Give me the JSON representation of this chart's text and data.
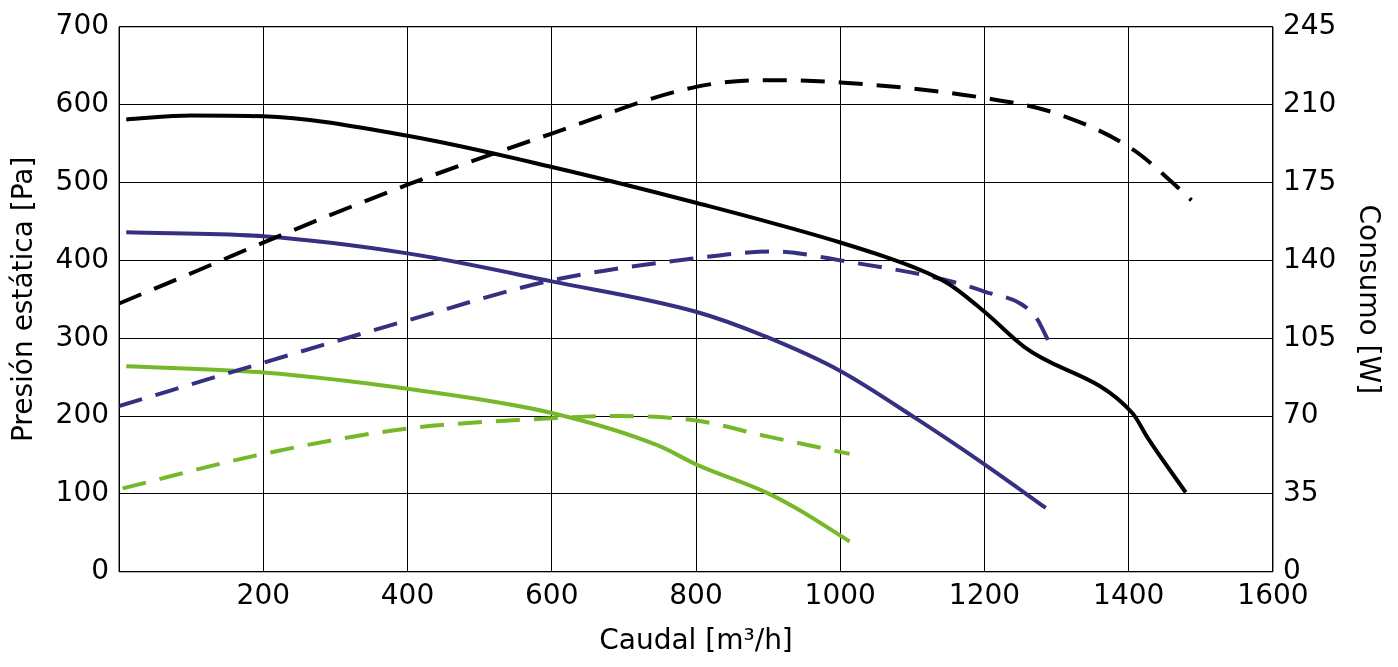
{
  "chart_data": {
    "type": "line",
    "xlabel": "Caudal [m³/h]",
    "ylabel": "Presión estática [Pa]",
    "y2label": "Consumo [W]",
    "xlim": [
      0,
      1600
    ],
    "xticks": [
      200,
      400,
      600,
      800,
      1000,
      1200,
      1400,
      1600
    ],
    "ylim": [
      0,
      700
    ],
    "yticks": [
      0,
      100,
      200,
      300,
      400,
      500,
      600,
      700
    ],
    "y2lim": [
      0,
      245
    ],
    "y2ticks": [
      0,
      35,
      70,
      105,
      140,
      175,
      210,
      245
    ],
    "grid": true,
    "legend": false,
    "marker": "none",
    "series": [
      {
        "color": "#000000",
        "line_style": "solid",
        "x": [
          10,
          100,
          200,
          400,
          600,
          800,
          1000,
          1105,
          1150,
          1200,
          1255,
          1405,
          1427,
          1479
        ],
        "values": [
          581,
          586,
          585,
          560,
          520,
          474,
          423,
          390,
          370,
          334,
          289,
          204,
          171,
          102
        ]
      },
      {
        "color": "#000000",
        "line_style": "dashed",
        "axis": "y2",
        "x": [
          0,
          106,
          200,
          400,
          600,
          800,
          897,
          1000,
          1200,
          1300,
          1405,
          1464,
          1487
        ],
        "values": [
          120.6,
          135,
          148,
          174,
          197,
          218,
          221,
          220,
          213,
          206,
          190,
          174,
          167
        ]
      },
      {
        "color": "#35307f",
        "line_style": "solid",
        "x": [
          10,
          200,
          400,
          600,
          800,
          897,
          1000,
          1105,
          1200,
          1285
        ],
        "values": [
          436,
          431,
          409,
          373,
          334,
          302,
          258,
          197,
          138,
          82
        ]
      },
      {
        "color": "#35307f",
        "line_style": "dashed",
        "axis": "y2",
        "x": [
          0,
          200,
          400,
          600,
          800,
          905,
          1000,
          1200,
          1270,
          1290
        ],
        "values": [
          74.5,
          94,
          113,
          131,
          141,
          144,
          140,
          126,
          115,
          103
        ]
      },
      {
        "color": "#77b82a",
        "line_style": "solid",
        "x": [
          10,
          200,
          400,
          600,
          748,
          800,
          897,
          942,
          1013
        ],
        "values": [
          264,
          256,
          235,
          204,
          162,
          138,
          102,
          80,
          39
        ]
      },
      {
        "color": "#77b82a",
        "line_style": "dashed",
        "axis": "y2",
        "x": [
          5,
          200,
          400,
          600,
          688,
          800,
          897,
          1013
        ],
        "values": [
          37.5,
          53,
          64.4,
          69,
          70,
          68,
          61,
          53
        ]
      }
    ]
  }
}
